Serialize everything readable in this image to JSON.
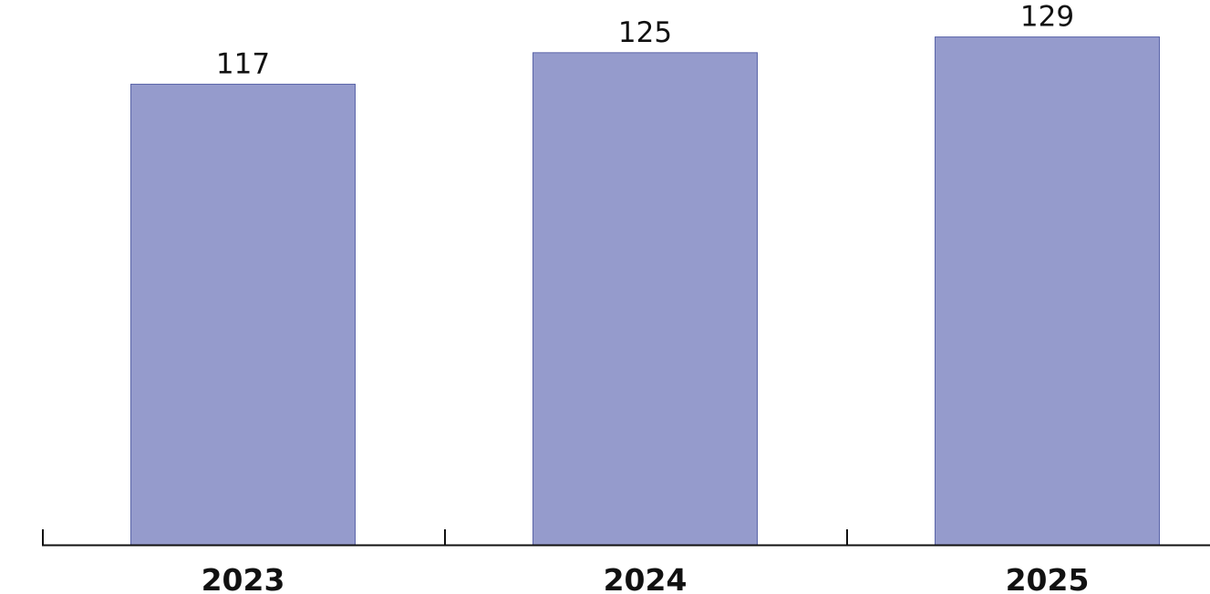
{
  "chart_data": {
    "type": "bar",
    "categories": [
      "2023",
      "2024",
      "2025"
    ],
    "values": [
      117,
      125,
      129
    ],
    "title": "",
    "xlabel": "",
    "ylabel": "",
    "ylim": [
      0,
      137
    ],
    "grid": false,
    "data_labels": true,
    "colors": {
      "bar_fill": "#959bcc",
      "bar_stroke": "#5a64a8",
      "axis": "#111111",
      "text": "#111111"
    }
  }
}
